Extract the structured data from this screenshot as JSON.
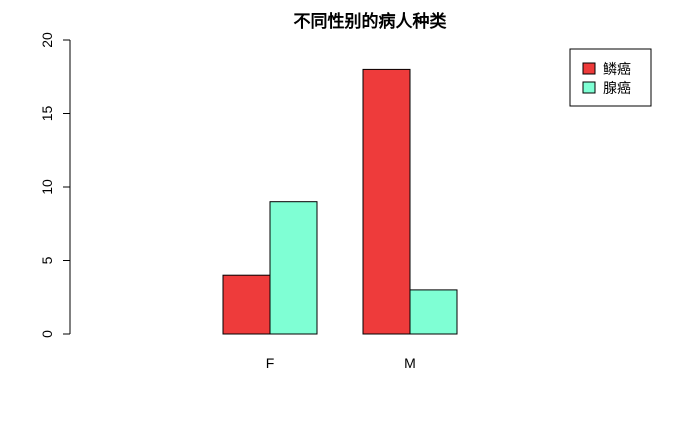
{
  "chart_data": {
    "type": "bar",
    "title": "不同性别的病人种类",
    "xlabel": "",
    "ylabel": "",
    "categories": [
      "F",
      "M"
    ],
    "series": [
      {
        "name": "鳞癌",
        "values": [
          4,
          18
        ],
        "color": "#EE3B3B"
      },
      {
        "name": "腺癌",
        "values": [
          9,
          3
        ],
        "color": "#7FFFD4"
      }
    ],
    "ylim": [
      0,
      20
    ],
    "yticks": [
      0,
      5,
      10,
      15,
      20
    ],
    "grid": false,
    "legend_position": "top-right"
  }
}
